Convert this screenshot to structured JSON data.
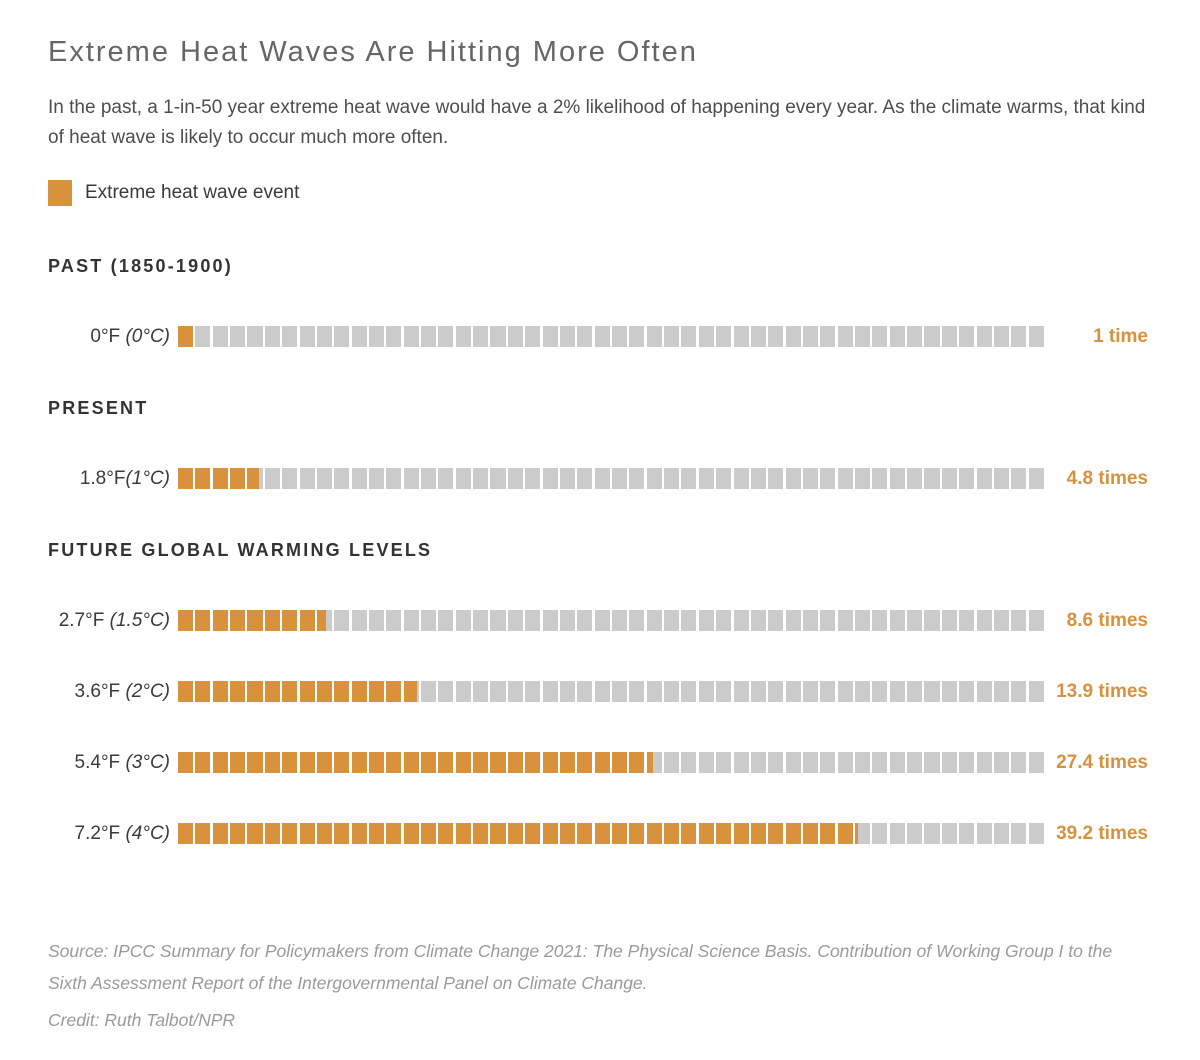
{
  "page": {
    "title": "Extreme Heat Waves Are Hitting More Often",
    "intro": "In the past, a 1-in-50 year extreme heat wave would have a 2% likelihood of happening every year. As the climate warms, that kind of heat wave is likely to occur much more often.",
    "legend": {
      "label": "Extreme heat wave event",
      "swatch_icon": "orange-square-icon"
    }
  },
  "colors": {
    "accent_orange": "#D8913D",
    "cell_gray": "#CBCBCB",
    "title_gray": "#666666",
    "body_gray": "#4E4E4E",
    "header_dark": "#333333",
    "footer_gray": "#9A9A9A"
  },
  "chart_data": {
    "type": "bar",
    "subtype": "waffle-strip-rows",
    "cells_per_row": 50,
    "title": "Extreme Heat Waves Are Hitting More Often",
    "xlabel": "",
    "ylabel": "",
    "xlim": [
      0,
      50
    ],
    "grid": false,
    "legend_position": "top-left",
    "categories": [
      "0°F (0°C)",
      "1.8°F(1°C)",
      "2.7°F (1.5°C)",
      "3.6°F (2°C)",
      "5.4°F (3°C)",
      "7.2°F (4°C)"
    ],
    "values": [
      1,
      4.8,
      8.6,
      13.9,
      27.4,
      39.2
    ],
    "sections": [
      {
        "header": "PAST (1850-1900)",
        "rows": [
          {
            "label": "0°F",
            "separator": " ",
            "label_paren": "(0°C)",
            "value": 1,
            "times_label": "1 time"
          }
        ]
      },
      {
        "header": "PRESENT",
        "rows": [
          {
            "label": "1.8°F",
            "separator": "",
            "label_paren": "(1°C)",
            "value": 4.8,
            "times_label": "4.8 times"
          }
        ]
      },
      {
        "header": "FUTURE GLOBAL WARMING LEVELS",
        "rows": [
          {
            "label": "2.7°F",
            "separator": " ",
            "label_paren": "(1.5°C)",
            "value": 8.6,
            "times_label": "8.6 times"
          },
          {
            "label": "3.6°F",
            "separator": " ",
            "label_paren": "(2°C)",
            "value": 13.9,
            "times_label": "13.9 times"
          },
          {
            "label": "5.4°F",
            "separator": " ",
            "label_paren": "(3°C)",
            "value": 27.4,
            "times_label": "27.4 times"
          },
          {
            "label": "7.2°F",
            "separator": " ",
            "label_paren": "(4°C)",
            "value": 39.2,
            "times_label": "39.2 times"
          }
        ]
      }
    ]
  },
  "footer": {
    "source": "Source: IPCC Summary for Policymakers from Climate Change 2021: The Physical Science Basis. Contribution of Working Group I to the Sixth Assessment Report of the Intergovernmental Panel on Climate Change.",
    "credit": "Credit: Ruth Talbot/NPR"
  }
}
